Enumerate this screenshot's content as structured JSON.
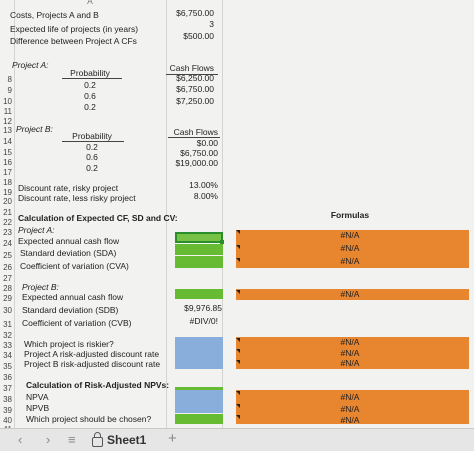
{
  "column_header": "A",
  "rows": {
    "r1": {
      "label": "Costs, Projects A and B",
      "value": "$6,750.00"
    },
    "r2": {
      "label": "Expected life of projects (in years)",
      "value": "3"
    },
    "r3": {
      "label": "Difference between Project A CFs",
      "value": "$500.00"
    },
    "r7": "Project A:",
    "project_a_header": {
      "probability": "Probability",
      "cash_flows": "Cash Flows"
    },
    "project_a": [
      {
        "probability": "0.2",
        "cash_flow": "$6,250.00"
      },
      {
        "probability": "0.6",
        "cash_flow": "$6,750.00"
      },
      {
        "probability": "0.2",
        "cash_flow": "$7,250.00"
      }
    ],
    "r13": "Project B:",
    "project_b_header": {
      "probability": "Probability",
      "cash_flows": "Cash Flows"
    },
    "project_b": [
      {
        "probability": "0.2",
        "cash_flow": "$0.00"
      },
      {
        "probability": "0.6",
        "cash_flow": "$6,750.00"
      },
      {
        "probability": "0.2",
        "cash_flow": "$19,000.00"
      }
    ],
    "r19": {
      "label": "Discount rate, risky project",
      "value": "13.00%"
    },
    "r20": {
      "label": "Discount rate, less risky project",
      "value": "8.00%"
    },
    "formulas_header": "Formulas",
    "r22": "Calculation of Expected CF, SD and CV:",
    "r23": "Project A:",
    "r24": "Expected annual cash flow",
    "r25": "Standard deviation (SDA)",
    "r26": "Coefficient of variation (CVA)",
    "r28": "Project B:",
    "r29": "Expected annual cash flow",
    "r30": {
      "label": "Standard deviation (SDB)",
      "value": "$9,976.85"
    },
    "r31": {
      "label": "Coefficient of variation (CVB)",
      "value": "#DIV/0!"
    },
    "r33": "Which project is riskier?",
    "r34": "Project A risk-adjusted discount rate",
    "r35": "Project B risk-adjusted discount rate",
    "r37": "Calculation of Risk-Adjusted NPVs:",
    "r38": "NPVA",
    "r39": "NPVB",
    "r40": "Which project should be chosen?"
  },
  "na": "#N/A",
  "row_numbers": [
    "8",
    "9",
    "10",
    "11",
    "12",
    "13",
    "14",
    "15",
    "16",
    "17",
    "18",
    "19",
    "20",
    "21",
    "22",
    "23",
    "24",
    "25",
    "26",
    "27",
    "28",
    "29",
    "30",
    "31",
    "32",
    "33",
    "34",
    "35",
    "36",
    "37",
    "38",
    "39",
    "40",
    "41"
  ],
  "tabbar": {
    "sheet_name": "Sheet1",
    "add": "+",
    "prev": "‹",
    "next": "›",
    "menu": "≡"
  },
  "colors": {
    "green": "#66bb33",
    "blue": "#8aaedc",
    "orange": "#e8862f"
  }
}
